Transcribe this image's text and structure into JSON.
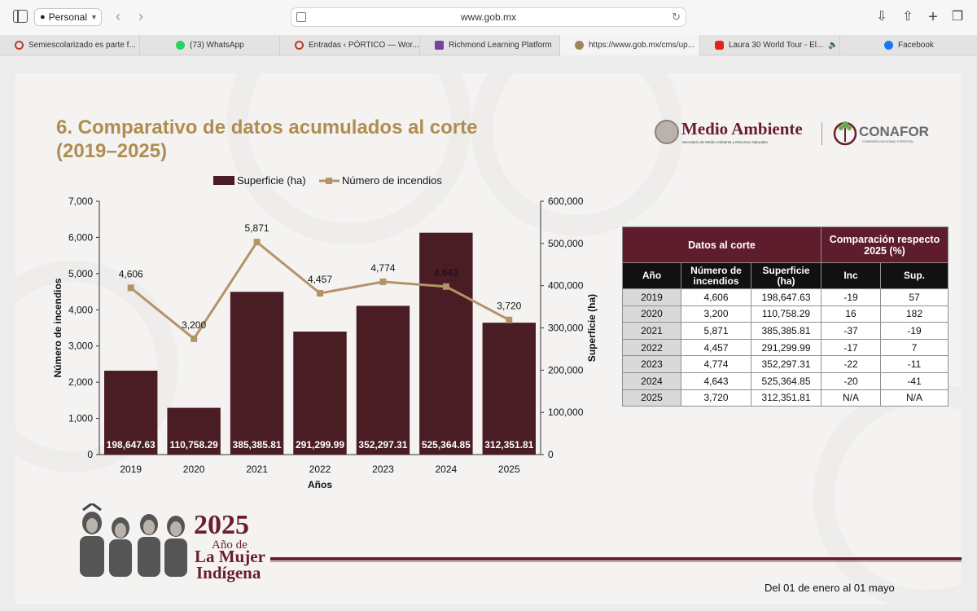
{
  "browser": {
    "profile": "Personal",
    "url": "www.gob.mx",
    "tabs": [
      {
        "label": "Semiescolarizado es parte f...",
        "icon": "circle-favicon-icon",
        "color": "#c0392b"
      },
      {
        "label": "(73) WhatsApp",
        "icon": "whatsapp-icon",
        "color": "#25d366"
      },
      {
        "label": "Entradas ‹ PÓRTICO — Wor...",
        "icon": "circle-favicon-icon",
        "color": "#c0392b"
      },
      {
        "label": "Richmond Learning Platform",
        "icon": "richmond-icon",
        "color": "#7b3f9e"
      },
      {
        "label": "https://www.gob.mx/cms/up...",
        "icon": "gob-icon",
        "color": "#a0835a"
      },
      {
        "label": "Laura 30 World Tour - El...",
        "icon": "youtube-icon",
        "color": "#e62117"
      },
      {
        "label": "Facebook",
        "icon": "facebook-icon",
        "color": "#1877f2"
      }
    ]
  },
  "slide": {
    "title_line1": "6. Comparativo de datos acumulados al corte",
    "title_line2": "(2019–2025)",
    "logo_medio_ambiente": "Medio Ambiente",
    "logo_medio_ambiente_sub": "Secretaría de Medio Ambiente y Recursos Naturales",
    "logo_conafor": "CONAFOR",
    "logo_conafor_sub": "COMISIÓN NACIONAL FORESTAL",
    "footer_year": "2025",
    "footer_year_sub1": "Año de",
    "footer_year_sub2": "La Mujer",
    "footer_year_sub3": "Indígena",
    "footer_note": "Del 01 de enero al 01 mayo"
  },
  "chart_data": {
    "type": "bar",
    "categories": [
      "2019",
      "2020",
      "2021",
      "2022",
      "2023",
      "2024",
      "2025"
    ],
    "series": [
      {
        "name": "Superficie (ha)",
        "type": "bar",
        "axis": "right",
        "values": [
          198647.63,
          110758.29,
          385385.81,
          291299.99,
          352297.31,
          525364.85,
          312351.81
        ],
        "labels": [
          "198,647.63",
          "110,758.29",
          "385,385.81",
          "291,299.99",
          "352,297.31",
          "525,364.85",
          "312,351.81"
        ],
        "color": "#4a1c24"
      },
      {
        "name": "Número de incendios",
        "type": "line",
        "axis": "left",
        "values": [
          4606,
          3200,
          5871,
          4457,
          4774,
          4643,
          3720
        ],
        "labels": [
          "4,606",
          "3,200",
          "5,871",
          "4,457",
          "4,774",
          "4,643",
          "3,720"
        ],
        "color": "#b39467"
      }
    ],
    "xlabel": "Años",
    "ylabel_left": "Número de incendios",
    "ylabel_right": "Superficie (ha)",
    "ylim_left": [
      0,
      7000
    ],
    "ylim_right": [
      0,
      600000
    ],
    "yticks_left": [
      "0",
      "1,000",
      "2,000",
      "3,000",
      "4,000",
      "5,000",
      "6,000",
      "7,000"
    ],
    "yticks_right": [
      "0",
      "100,000",
      "200,000",
      "300,000",
      "400,000",
      "500,000",
      "600,000"
    ],
    "legend_position": "top"
  },
  "table": {
    "header_left": "Datos al corte",
    "header_right": "Comparación respecto 2025 (%)",
    "columns": [
      "Año",
      "Número de incendios",
      "Superficie (ha)",
      "Inc",
      "Sup."
    ],
    "rows": [
      [
        "2019",
        "4,606",
        "198,647.63",
        "-19",
        "57"
      ],
      [
        "2020",
        "3,200",
        "110,758.29",
        "16",
        "182"
      ],
      [
        "2021",
        "5,871",
        "385,385.81",
        "-37",
        "-19"
      ],
      [
        "2022",
        "4,457",
        "291,299.99",
        "-17",
        "7"
      ],
      [
        "2023",
        "4,774",
        "352,297.31",
        "-22",
        "-11"
      ],
      [
        "2024",
        "4,643",
        "525,364.85",
        "-20",
        "-41"
      ],
      [
        "2025",
        "3,720",
        "312,351.81",
        "N/A",
        "N/A"
      ]
    ]
  }
}
